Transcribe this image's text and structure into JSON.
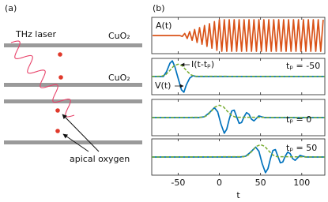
{
  "panel_a": {
    "label": "(a)",
    "laser_label": "THz laser",
    "plane_labels": [
      "CuO₂",
      "CuO₂"
    ],
    "oxygen_label": "apical oxygen"
  },
  "panel_b_label": "(b)",
  "chart_data": [
    {
      "type": "line",
      "xlim": [
        -82,
        128
      ],
      "ylim": [
        -1.15,
        1.15
      ],
      "xticks": [
        -50,
        0,
        50,
        100
      ],
      "series": [
        {
          "name": "A(t)",
          "color": "#d95319",
          "x": [
            -81,
            -78,
            -75,
            -72,
            -69,
            -66,
            -63,
            -60,
            -57,
            -54,
            -51,
            -48,
            -45,
            -42,
            -39,
            -36,
            -33,
            -30,
            -27,
            -24,
            -21,
            -18,
            -15,
            -12,
            -9,
            -6,
            -3,
            0,
            3,
            6,
            9,
            12,
            15,
            18,
            21,
            24,
            27,
            30,
            33,
            36,
            39,
            42,
            45,
            48,
            51,
            54,
            57,
            60,
            63,
            66,
            69,
            72,
            75,
            78,
            81,
            84,
            87,
            90,
            93,
            96,
            99,
            102,
            105,
            108,
            111,
            114,
            117,
            120,
            123,
            126
          ],
          "values": [
            0,
            0,
            0,
            0,
            0,
            0,
            0,
            0,
            0,
            0,
            0,
            0,
            -0.06,
            0.13,
            -0.19,
            0.25,
            -0.31,
            0.38,
            -0.44,
            0.5,
            -0.56,
            0.63,
            -0.69,
            0.75,
            -0.81,
            0.88,
            -0.94,
            1,
            -1,
            1,
            -1,
            1,
            -1,
            1,
            -1,
            1,
            -1,
            1,
            -1,
            1,
            -1,
            1,
            -1,
            1,
            -1,
            1,
            -1,
            1,
            -1,
            1,
            -1,
            1,
            -1,
            1,
            -1,
            1,
            -1,
            1,
            -1,
            1,
            -1,
            1,
            -1,
            1,
            -1,
            1,
            -1,
            1,
            -1,
            1
          ]
        }
      ]
    },
    {
      "type": "line",
      "xlim": [
        -82,
        128
      ],
      "ylim": [
        -1.1,
        1.1
      ],
      "xticks": [
        -50,
        0,
        50,
        100
      ],
      "label": "tₚ = -50",
      "series": [
        {
          "name": "V(t)",
          "color": "#0072bd",
          "x": [
            -82,
            -68,
            -64,
            -60,
            -57,
            -54,
            -50,
            -46,
            -43,
            -40,
            -36,
            -32,
            -28,
            128
          ],
          "values": [
            0,
            0,
            0.3,
            0.8,
            0.95,
            0.6,
            -0.1,
            -0.8,
            -0.95,
            -0.5,
            -0.1,
            0.05,
            0,
            0
          ]
        },
        {
          "name": "I(t-tₚ)",
          "color": "#77ac30",
          "dashed": true,
          "x": [
            -82,
            -70,
            -65,
            -60,
            -55,
            -50,
            -45,
            -40,
            -35,
            -30,
            128
          ],
          "values": [
            0,
            0.02,
            0.12,
            0.37,
            0.65,
            0.75,
            0.65,
            0.37,
            0.12,
            0.02,
            0
          ]
        }
      ]
    },
    {
      "type": "line",
      "xlim": [
        -82,
        128
      ],
      "ylim": [
        -1.1,
        1.1
      ],
      "xticks": [
        -50,
        0,
        50,
        100
      ],
      "label": "tₚ = 0",
      "series": [
        {
          "color": "#0072bd",
          "x": [
            -82,
            -25,
            -18,
            -12,
            -6,
            -2,
            2,
            6,
            9,
            12,
            15,
            18,
            21,
            24,
            27,
            30,
            33,
            36,
            39,
            42,
            45,
            48,
            51,
            55,
            128
          ],
          "values": [
            0,
            0,
            0.05,
            0.3,
            0.6,
            0.35,
            -0.4,
            -0.95,
            -0.7,
            -0.1,
            0.4,
            0.45,
            0.05,
            -0.35,
            -0.3,
            0.05,
            0.3,
            0.2,
            -0.1,
            -0.2,
            -0.05,
            0.1,
            0.05,
            0,
            0
          ]
        },
        {
          "color": "#77ac30",
          "dashed": true,
          "x": [
            -82,
            -20,
            -15,
            -10,
            -5,
            0,
            5,
            10,
            15,
            20,
            128
          ],
          "values": [
            0,
            0.02,
            0.12,
            0.37,
            0.65,
            0.75,
            0.65,
            0.37,
            0.12,
            0.02,
            0
          ]
        }
      ]
    },
    {
      "type": "line",
      "xlim": [
        -82,
        128
      ],
      "ylim": [
        -1.1,
        1.1
      ],
      "xticks": [
        -50,
        0,
        50,
        100
      ],
      "label": "tₚ = 50",
      "xlabel": "t",
      "series": [
        {
          "color": "#0072bd",
          "x": [
            -82,
            25,
            32,
            38,
            44,
            48,
            52,
            56,
            59,
            62,
            65,
            68,
            71,
            74,
            77,
            80,
            83,
            86,
            89,
            92,
            95,
            98,
            101,
            105,
            128
          ],
          "values": [
            0,
            0,
            0.05,
            0.3,
            0.6,
            0.35,
            -0.4,
            -0.95,
            -0.7,
            -0.1,
            0.4,
            0.45,
            0.05,
            -0.35,
            -0.3,
            0.05,
            0.3,
            0.2,
            -0.1,
            -0.2,
            -0.05,
            0.1,
            0.05,
            0,
            0
          ]
        },
        {
          "color": "#77ac30",
          "dashed": true,
          "x": [
            -82,
            30,
            35,
            40,
            45,
            50,
            55,
            60,
            65,
            70,
            128
          ],
          "values": [
            0,
            0.02,
            0.12,
            0.37,
            0.65,
            0.75,
            0.65,
            0.37,
            0.12,
            0.02,
            0
          ]
        }
      ]
    }
  ]
}
